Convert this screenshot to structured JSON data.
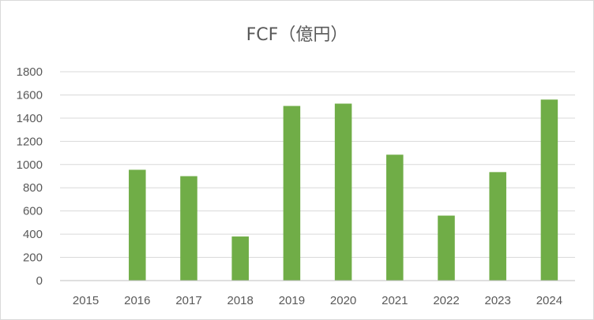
{
  "chart_data": {
    "type": "bar",
    "title": "FCF（億円）",
    "categories": [
      "2015",
      "2016",
      "2017",
      "2018",
      "2019",
      "2020",
      "2021",
      "2022",
      "2023",
      "2024"
    ],
    "series": [
      {
        "values": [
          0,
          955,
          900,
          380,
          1505,
          1525,
          1085,
          560,
          935,
          1560
        ]
      }
    ],
    "ylim": [
      0,
      1800
    ],
    "yticks": [
      "0",
      "200",
      "400",
      "600",
      "800",
      "1000",
      "1200",
      "1400",
      "1600",
      "1800"
    ],
    "grid": true,
    "legend": "none",
    "colors": {
      "bar": "#70ad47",
      "grid": "#d9d9d9",
      "axis": "#bfbfbf",
      "text": "#595959"
    }
  }
}
